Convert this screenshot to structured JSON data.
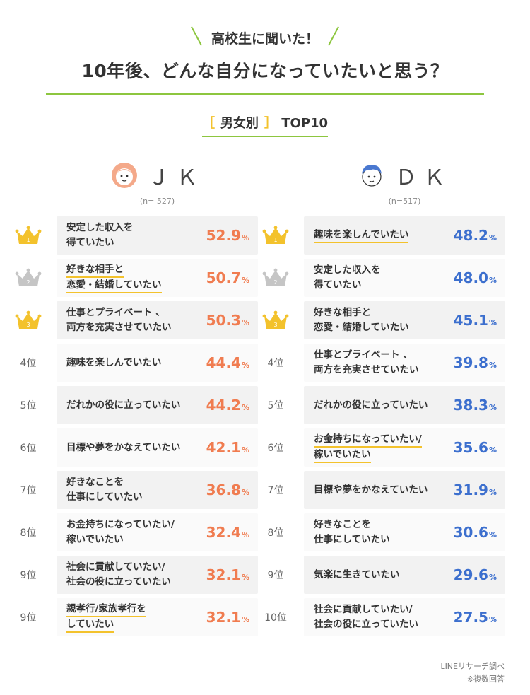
{
  "heading": {
    "subtitle": "高校生に聞いた！",
    "title": "10年後、どんな自分になっていたいと思う？"
  },
  "section": {
    "open_bracket": "［",
    "label": "男女別",
    "close_bracket": "］",
    "top": "TOP10"
  },
  "colors": {
    "accent": "#8dc63f",
    "highlight": "#f3c22c",
    "jk": "#f07c50",
    "dk": "#3c6fce",
    "gold": "#f3c22c",
    "silver": "#c5c5c5"
  },
  "chart_data": [
    {
      "type": "table",
      "group": "ＪＫ",
      "n": "(n= 527)",
      "rows": [
        {
          "rank": "1",
          "lines": [
            "安定した収入を",
            "得ていたい"
          ],
          "hl": false,
          "value": 52.9,
          "value_text": "52.9",
          "unit": "%"
        },
        {
          "rank": "2",
          "lines": [
            "好きな相手と",
            "恋愛・結婚していたい"
          ],
          "hl": true,
          "value": 50.7,
          "value_text": "50.7",
          "unit": "%"
        },
        {
          "rank": "3",
          "lines": [
            "仕事とプライベート 、",
            "両方を充実させていたい"
          ],
          "hl": false,
          "value": 50.3,
          "value_text": "50.3",
          "unit": "%"
        },
        {
          "rank": "4位",
          "lines": [
            "趣味を楽しんでいたい"
          ],
          "hl": false,
          "value": 44.4,
          "value_text": "44.4",
          "unit": "%"
        },
        {
          "rank": "5位",
          "lines": [
            "だれかの役に立っていたい"
          ],
          "hl": false,
          "value": 44.2,
          "value_text": "44.2",
          "unit": "%"
        },
        {
          "rank": "6位",
          "lines": [
            "目標や夢をかなえていたい"
          ],
          "hl": false,
          "value": 42.1,
          "value_text": "42.1",
          "unit": "%"
        },
        {
          "rank": "7位",
          "lines": [
            "好きなことを",
            "仕事にしていたい"
          ],
          "hl": false,
          "value": 36.8,
          "value_text": "36.8",
          "unit": "%"
        },
        {
          "rank": "8位",
          "lines": [
            "お金持ちになっていたい/",
            "稼いでいたい"
          ],
          "hl": false,
          "value": 32.4,
          "value_text": "32.4",
          "unit": "%"
        },
        {
          "rank": "9位",
          "lines": [
            "社会に貢献していたい/",
            "社会の役に立っていたい"
          ],
          "hl": false,
          "value": 32.1,
          "value_text": "32.1",
          "unit": "%"
        },
        {
          "rank": "9位",
          "lines": [
            "親孝行/家族孝行を",
            "していたい"
          ],
          "hl": true,
          "value": 32.1,
          "value_text": "32.1",
          "unit": "%"
        }
      ]
    },
    {
      "type": "table",
      "group": "ＤＫ",
      "n": "(n=517)",
      "rows": [
        {
          "rank": "1",
          "lines": [
            "趣味を楽しんでいたい"
          ],
          "hl": true,
          "value": 48.2,
          "value_text": "48.2",
          "unit": "%"
        },
        {
          "rank": "2",
          "lines": [
            "安定した収入を",
            "得ていたい"
          ],
          "hl": false,
          "value": 48.0,
          "value_text": "48.0",
          "unit": "%"
        },
        {
          "rank": "3",
          "lines": [
            "好きな相手と",
            "恋愛・結婚していたい"
          ],
          "hl": false,
          "value": 45.1,
          "value_text": "45.1",
          "unit": "%"
        },
        {
          "rank": "4位",
          "lines": [
            "仕事とプライベート 、",
            "両方を充実させていたい"
          ],
          "hl": false,
          "value": 39.8,
          "value_text": "39.8",
          "unit": "%"
        },
        {
          "rank": "5位",
          "lines": [
            "だれかの役に立っていたい"
          ],
          "hl": false,
          "value": 38.3,
          "value_text": "38.3",
          "unit": "%"
        },
        {
          "rank": "6位",
          "lines": [
            "お金持ちになっていたい/",
            "稼いでいたい"
          ],
          "hl": true,
          "value": 35.6,
          "value_text": "35.6",
          "unit": "%"
        },
        {
          "rank": "7位",
          "lines": [
            "目標や夢をかなえていたい"
          ],
          "hl": false,
          "value": 31.9,
          "value_text": "31.9",
          "unit": "%"
        },
        {
          "rank": "8位",
          "lines": [
            "好きなことを",
            "仕事にしていたい"
          ],
          "hl": false,
          "value": 30.6,
          "value_text": "30.6",
          "unit": "%"
        },
        {
          "rank": "9位",
          "lines": [
            "気楽に生きていたい"
          ],
          "hl": false,
          "value": 29.6,
          "value_text": "29.6",
          "unit": "%"
        },
        {
          "rank": "10位",
          "lines": [
            "社会に貢献していたい/",
            "社会の役に立っていたい"
          ],
          "hl": false,
          "value": 27.5,
          "value_text": "27.5",
          "unit": "%"
        }
      ]
    }
  ],
  "footer": {
    "source": "LINEリサーチ調べ",
    "note": "※複数回答"
  }
}
